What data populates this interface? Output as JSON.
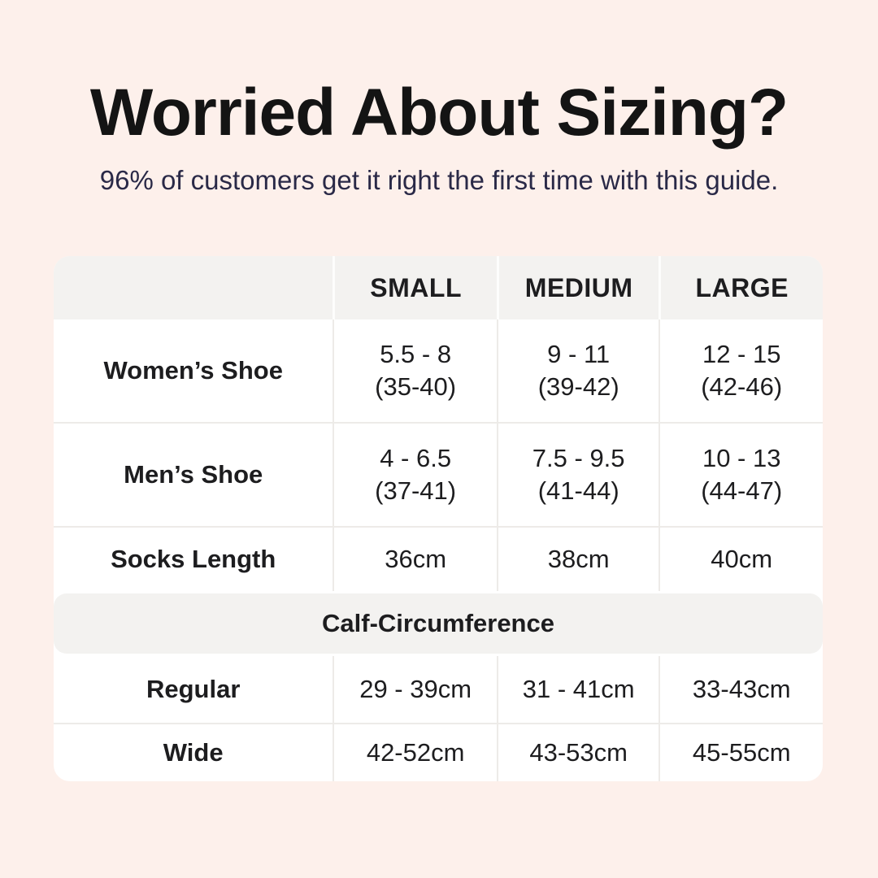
{
  "colors": {
    "background": "#fdf0eb",
    "card": "#ffffff",
    "band": "#f3f2f0",
    "divider": "#edebe8",
    "title_text": "#141414",
    "subtitle_text": "#2a2947",
    "cell_text": "#1d1d1f"
  },
  "header": {
    "title": "Worried About Sizing?",
    "subtitle": "96% of customers get it right the first time with this guide."
  },
  "size_table": {
    "columns": {
      "col0": "",
      "col1": "SMALL",
      "col2": "MEDIUM",
      "col3": "LARGE"
    },
    "rows": {
      "womens": {
        "label": "Women’s Shoe",
        "small_line1": "5.5 - 8",
        "small_line2": "(35-40)",
        "medium_line1": "9 - 11",
        "medium_line2": "(39-42)",
        "large_line1": "12 - 15",
        "large_line2": "(42-46)"
      },
      "mens": {
        "label": "Men’s Shoe",
        "small_line1": "4 - 6.5",
        "small_line2": "(37-41)",
        "medium_line1": "7.5 - 9.5",
        "medium_line2": "(41-44)",
        "large_line1": "10 - 13",
        "large_line2": "(44-47)"
      },
      "socks": {
        "label": "Socks Length",
        "small": "36cm",
        "medium": "38cm",
        "large": "40cm"
      }
    },
    "section_header": "Calf-Circumference",
    "calf_rows": {
      "regular": {
        "label": "Regular",
        "small": "29 - 39cm",
        "medium": "31 - 41cm",
        "large": "33-43cm"
      },
      "wide": {
        "label": "Wide",
        "small": "42-52cm",
        "medium": "43-53cm",
        "large": "45-55cm"
      }
    }
  },
  "chart_data": {
    "type": "table",
    "title": "Worried About Sizing?",
    "subtitle": "96% of customers get it right the first time with this guide.",
    "columns": [
      "",
      "SMALL",
      "MEDIUM",
      "LARGE"
    ],
    "rows": [
      [
        "Women’s Shoe",
        "5.5 - 8 (35-40)",
        "9 - 11 (39-42)",
        "12 - 15 (42-46)"
      ],
      [
        "Men’s Shoe",
        "4 - 6.5 (37-41)",
        "7.5 - 9.5 (41-44)",
        "10 - 13 (44-47)"
      ],
      [
        "Socks Length",
        "36cm",
        "38cm",
        "40cm"
      ],
      [
        "Calf-Circumference",
        "",
        "",
        ""
      ],
      [
        "Regular",
        "29 - 39cm",
        "31 - 41cm",
        "33-43cm"
      ],
      [
        "Wide",
        "42-52cm",
        "43-53cm",
        "45-55cm"
      ]
    ]
  }
}
